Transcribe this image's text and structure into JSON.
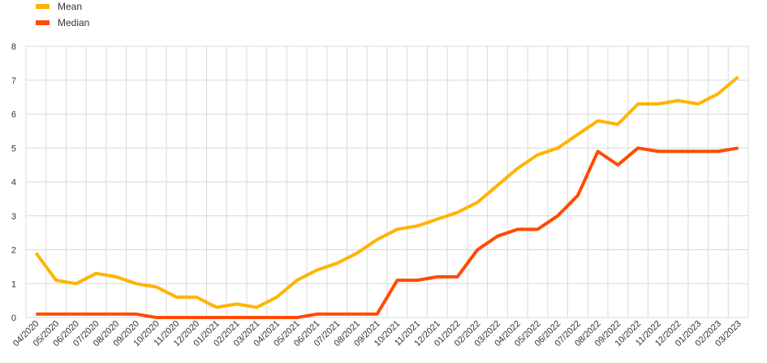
{
  "chart_data": {
    "type": "line",
    "categories": [
      "04/2020",
      "05/2020",
      "06/2020",
      "07/2020",
      "08/2020",
      "09/2020",
      "10/2020",
      "11/2020",
      "12/2020",
      "01/2021",
      "02/2021",
      "03/2021",
      "04/2021",
      "05/2021",
      "06/2021",
      "07/2021",
      "08/2021",
      "09/2021",
      "10/2021",
      "11/2021",
      "12/2021",
      "01/2022",
      "02/2022",
      "03/2022",
      "04/2022",
      "05/2022",
      "06/2022",
      "07/2022",
      "08/2022",
      "09/2022",
      "10/2022",
      "11/2022",
      "12/2022",
      "01/2023",
      "02/2023",
      "03/2023"
    ],
    "series": [
      {
        "name": "Mean",
        "color": "#FFB400",
        "values": [
          1.9,
          1.1,
          1.0,
          1.3,
          1.2,
          1.0,
          0.9,
          0.6,
          0.6,
          0.3,
          0.4,
          0.3,
          0.6,
          1.1,
          1.4,
          1.6,
          1.9,
          2.3,
          2.6,
          2.7,
          2.9,
          3.1,
          3.4,
          3.9,
          4.4,
          4.8,
          5.0,
          5.4,
          5.8,
          5.7,
          6.3,
          6.3,
          6.4,
          6.3,
          6.6,
          7.1
        ]
      },
      {
        "name": "Median",
        "color": "#FF4B00",
        "values": [
          0.1,
          0.1,
          0.1,
          0.1,
          0.1,
          0.1,
          0.0,
          0.0,
          0.0,
          0.0,
          0.0,
          0.0,
          0.0,
          0.0,
          0.1,
          0.1,
          0.1,
          0.1,
          1.1,
          1.1,
          1.2,
          1.2,
          2.0,
          2.4,
          2.6,
          2.6,
          3.0,
          3.6,
          4.9,
          4.5,
          5.0,
          4.9,
          4.9,
          4.9,
          4.9,
          5.0
        ]
      }
    ],
    "ylim": [
      0,
      8
    ],
    "yticks": [
      "0",
      "1",
      "2",
      "3",
      "4",
      "5",
      "6",
      "7",
      "8"
    ],
    "grid": true,
    "legend_position": "top-left",
    "title": "",
    "xlabel": "",
    "ylabel": ""
  }
}
